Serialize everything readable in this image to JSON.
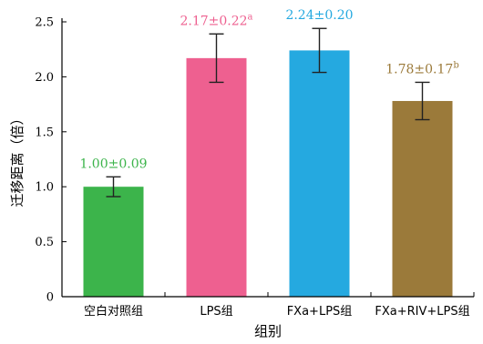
{
  "chart_data": {
    "type": "bar",
    "categories": [
      "空白对照组",
      "LPS组",
      "FXa+LPS组",
      "FXa+RIV+LPS组"
    ],
    "values": [
      1.0,
      2.17,
      2.24,
      1.78
    ],
    "errors": [
      0.09,
      0.22,
      0.2,
      0.17
    ],
    "data_labels": [
      {
        "text": "1.00±0.09",
        "sup": ""
      },
      {
        "text": "2.17±0.22",
        "sup": "a"
      },
      {
        "text": "2.24±0.20",
        "sup": ""
      },
      {
        "text": "1.78±0.17",
        "sup": "b"
      }
    ],
    "colors": [
      "#3cb44b",
      "#ee6090",
      "#25a9e0",
      "#9b7a3a"
    ],
    "xlabel": "组别",
    "ylabel": "迁移距离（倍）",
    "ylim": [
      0,
      2.5
    ],
    "yticks": [
      "0",
      "0.5",
      "1.0",
      "1.5",
      "2.0",
      "2.5"
    ],
    "grid": false
  }
}
